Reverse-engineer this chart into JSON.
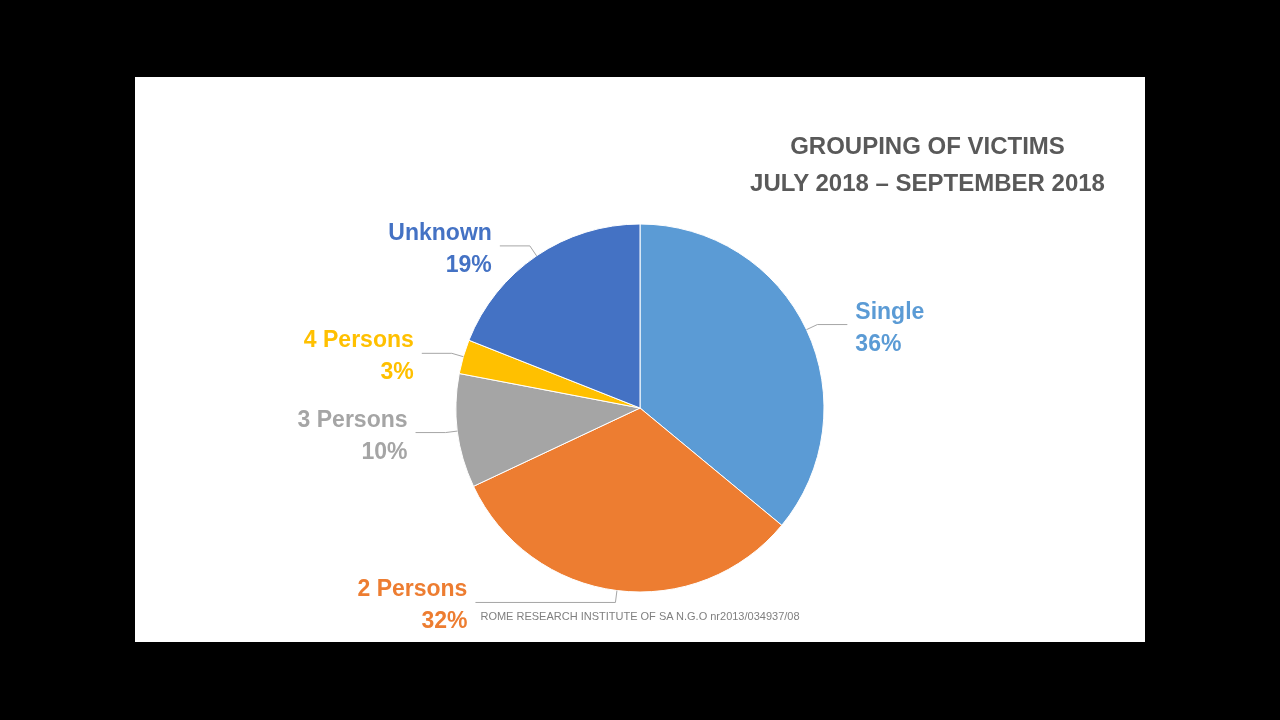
{
  "chart_data": {
    "type": "pie",
    "title": "GROUPING OF VICTIMS\nJULY 2018 – SEPTEMBER 2018",
    "categories": [
      "Single",
      "2 Persons",
      "3 Persons",
      "4 Persons",
      "Unknown"
    ],
    "values": [
      36,
      32,
      10,
      3,
      19
    ],
    "colors": [
      "#5b9bd5",
      "#ed7d31",
      "#a5a5a5",
      "#ffc000",
      "#4472c4"
    ],
    "value_labels": [
      "36%",
      "32%",
      "10%",
      "3%",
      "19%"
    ],
    "legend": false,
    "annotations": [
      "ROME RESEARCH INSTITUTE OF SA N.G.O nr2013/034937/08"
    ]
  }
}
